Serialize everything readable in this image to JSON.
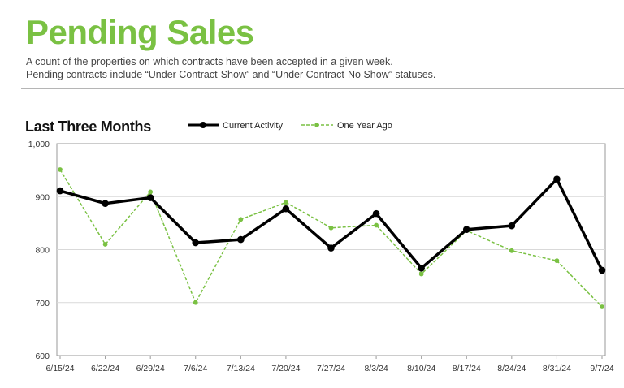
{
  "header": {
    "title": "Pending Sales",
    "subtitle_line1": "A count of the properties on which contracts have been accepted in a given week.",
    "subtitle_line2": "Pending contracts include “Under Contract-Show” and “Under Contract-No Show” statuses."
  },
  "colors": {
    "title": "#7ac143",
    "current": "#000000",
    "year_ago": "#7ac143"
  },
  "chart_data": {
    "type": "line",
    "title": "Last Three Months",
    "xlabel": "",
    "ylabel": "",
    "categories": [
      "6/15/24",
      "6/22/24",
      "6/29/24",
      "7/6/24",
      "7/13/24",
      "7/20/24",
      "7/27/24",
      "8/3/24",
      "8/10/24",
      "8/17/24",
      "8/24/24",
      "8/31/24",
      "9/7/24"
    ],
    "series": [
      {
        "name": "Current Activity",
        "style": "solid",
        "values": [
          911,
          887,
          898,
          813,
          819,
          877,
          803,
          868,
          765,
          838,
          845,
          933,
          761
        ]
      },
      {
        "name": "One Year Ago",
        "style": "dashed",
        "values": [
          951,
          810,
          909,
          700,
          857,
          889,
          841,
          846,
          754,
          836,
          798,
          779,
          692
        ]
      }
    ],
    "ylim": [
      600,
      1000
    ],
    "yticks": [
      "600",
      "700",
      "800",
      "900",
      "1,000"
    ],
    "grid": true,
    "legend": "top-center"
  }
}
